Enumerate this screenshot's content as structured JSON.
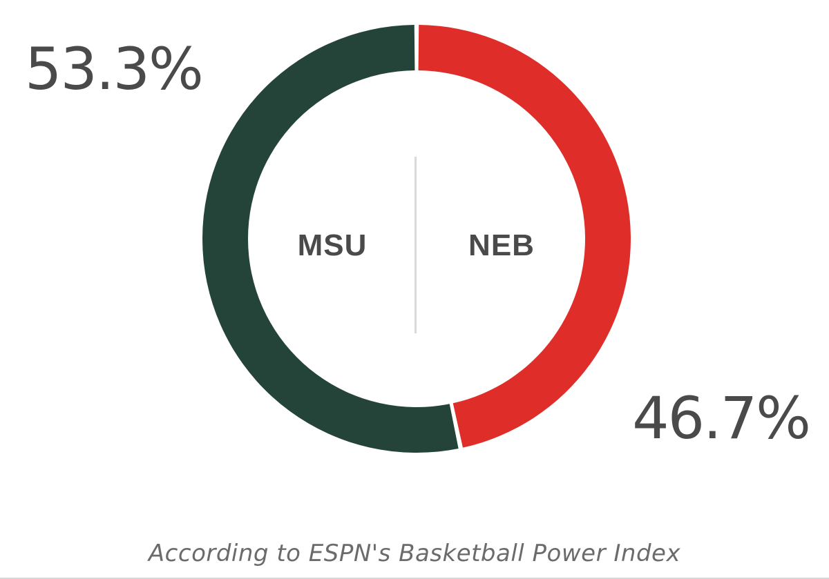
{
  "chart_data": {
    "type": "pie",
    "donut": true,
    "title": "",
    "categories": [
      "MSU",
      "NEB"
    ],
    "values": [
      53.3,
      46.7
    ],
    "value_labels": [
      "53.3%",
      "46.7%"
    ],
    "colors": [
      "#24443A",
      "#DF2D2A"
    ],
    "caption": "According to ESPN's Basketball Power Index"
  },
  "labels": {
    "away_team": "MSU",
    "home_team": "NEB",
    "away_pct": "53.3%",
    "home_pct": "46.7%"
  },
  "theme": {
    "background": "#FFFFFF",
    "text": "#4A4A4A",
    "caption": "#6B6B6B",
    "divider": "#D9D9D9"
  }
}
